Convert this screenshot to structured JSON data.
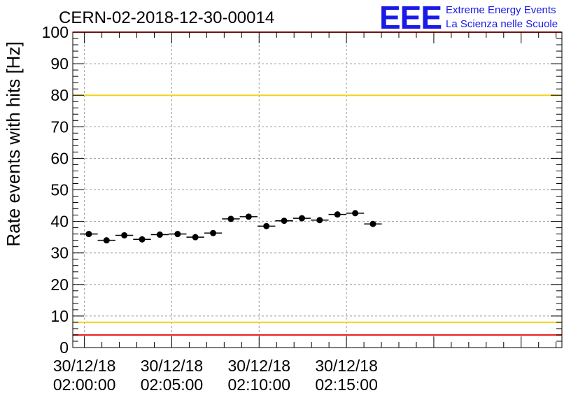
{
  "chart_data": {
    "type": "scatter",
    "title": "CERN-02-2018-12-30-00014",
    "ylabel": "Rate events with hits [Hz]",
    "xlabel": "",
    "ylim": [
      0,
      100
    ],
    "yticks": [
      0,
      10,
      20,
      30,
      40,
      50,
      60,
      70,
      80,
      90,
      100
    ],
    "x_range_seconds": [
      -40,
      1640
    ],
    "xticks": [
      {
        "t": 0,
        "date": "30/12/18",
        "time": "02:00:00"
      },
      {
        "t": 300,
        "date": "30/12/18",
        "time": "02:05:00"
      },
      {
        "t": 600,
        "date": "30/12/18",
        "time": "02:10:00"
      },
      {
        "t": 900,
        "date": "30/12/18",
        "time": "02:15:00"
      }
    ],
    "grid": true,
    "bin_width_seconds": 61,
    "points": [
      {
        "t": 15,
        "y": 36.0
      },
      {
        "t": 76,
        "y": 34.0
      },
      {
        "t": 137,
        "y": 35.6
      },
      {
        "t": 198,
        "y": 34.3
      },
      {
        "t": 259,
        "y": 35.8
      },
      {
        "t": 320,
        "y": 36.0
      },
      {
        "t": 381,
        "y": 35.0
      },
      {
        "t": 442,
        "y": 36.3
      },
      {
        "t": 503,
        "y": 40.8
      },
      {
        "t": 564,
        "y": 41.5
      },
      {
        "t": 625,
        "y": 38.5
      },
      {
        "t": 686,
        "y": 40.2
      },
      {
        "t": 747,
        "y": 41.0
      },
      {
        "t": 808,
        "y": 40.4
      },
      {
        "t": 869,
        "y": 42.2
      },
      {
        "t": 930,
        "y": 42.6
      },
      {
        "t": 991,
        "y": 39.2
      }
    ],
    "reference_lines": [
      {
        "y": 100,
        "color": "#e8201c"
      },
      {
        "y": 80,
        "color": "#f2d21b"
      },
      {
        "y": 8,
        "color": "#f2d21b"
      },
      {
        "y": 4,
        "color": "#e8201c"
      }
    ],
    "marker_color": "#000000"
  },
  "logo": {
    "mark": "EEE",
    "line1": "Extreme Energy Events",
    "line2": "La Scienza nelle Scuole",
    "color": "#1a1ae6"
  }
}
